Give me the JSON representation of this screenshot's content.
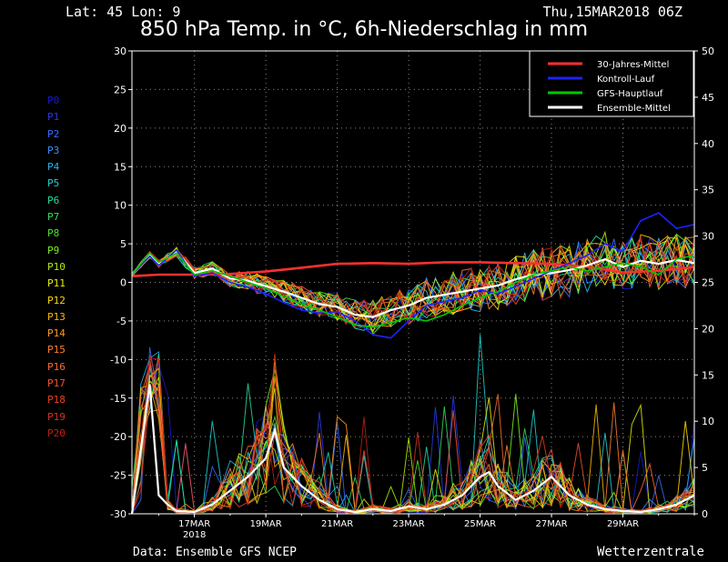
{
  "header": {
    "location": "Lat: 45 Lon: 9",
    "datestamp": "Thu,15MAR2018 06Z"
  },
  "footer": {
    "source": "Data: Ensemble GFS NCEP",
    "brand": "Wetterzentrale"
  },
  "members": [
    {
      "label": "P0",
      "color": "#1818d0"
    },
    {
      "label": "P1",
      "color": "#2a3ae8"
    },
    {
      "label": "P2",
      "color": "#3a6cff"
    },
    {
      "label": "P3",
      "color": "#3a90ff"
    },
    {
      "label": "P4",
      "color": "#28b4f0"
    },
    {
      "label": "P5",
      "color": "#20d2d2"
    },
    {
      "label": "P6",
      "color": "#20e0a0"
    },
    {
      "label": "P7",
      "color": "#30e060"
    },
    {
      "label": "P8",
      "color": "#50e030"
    },
    {
      "label": "P9",
      "color": "#80f020"
    },
    {
      "label": "P10",
      "color": "#b0f000"
    },
    {
      "label": "P11",
      "color": "#e8f000"
    },
    {
      "label": "P12",
      "color": "#ffd800"
    },
    {
      "label": "P13",
      "color": "#ffb800"
    },
    {
      "label": "P14",
      "color": "#ff9c20"
    },
    {
      "label": "P15",
      "color": "#ff8030"
    },
    {
      "label": "P16",
      "color": "#ff6a30"
    },
    {
      "label": "P17",
      "color": "#f85030"
    },
    {
      "label": "P18",
      "color": "#e84020"
    },
    {
      "label": "P19",
      "color": "#d83020"
    },
    {
      "label": "P20",
      "color": "#c02010"
    }
  ],
  "chart_data": {
    "type": "line",
    "title": "850 hPa Temp. in °C, 6h-Niederschlag in mm",
    "x_ticks": [
      "17MAR",
      "19MAR",
      "21MAR",
      "23MAR",
      "25MAR",
      "27MAR",
      "29MAR"
    ],
    "x_year_label": "2018",
    "x_range_days": [
      15.25,
      31.0
    ],
    "y_left": {
      "range": [
        -30,
        30
      ],
      "ticks": [
        -30,
        -25,
        -20,
        -15,
        -10,
        -5,
        0,
        5,
        10,
        15,
        20,
        25,
        30
      ]
    },
    "y_right": {
      "range": [
        0,
        50
      ],
      "ticks": [
        0,
        5,
        10,
        15,
        20,
        25,
        30,
        35,
        40,
        45,
        50
      ]
    },
    "grid": true,
    "legend_position": "top-right",
    "legend": [
      {
        "name": "30-Jahres-Mittel",
        "color": "#ff3030"
      },
      {
        "name": "Kontroll-Lauf",
        "color": "#2020ff"
      },
      {
        "name": "GFS-Hauptlauf",
        "color": "#00c800"
      },
      {
        "name": "Ensemble-Mittel",
        "color": "#ffffff"
      }
    ],
    "series": [
      {
        "name": "30-Jahres-Mittel",
        "axis": "left",
        "color": "#ff3030",
        "x": [
          15.25,
          16,
          17,
          18,
          19,
          20,
          21,
          22,
          23,
          24,
          25,
          26,
          27,
          28,
          29,
          30,
          31
        ],
        "values": [
          0.8,
          1.0,
          1.0,
          1.1,
          1.4,
          1.9,
          2.4,
          2.5,
          2.4,
          2.6,
          2.6,
          2.5,
          2.4,
          2.0,
          1.3,
          1.5,
          2.0
        ]
      },
      {
        "name": "Ensemble-Mittel",
        "axis": "left",
        "color": "#ffffff",
        "x": [
          15.25,
          15.75,
          16,
          16.5,
          17,
          17.5,
          18,
          18.5,
          19,
          19.5,
          20,
          20.5,
          21,
          21.5,
          22,
          22.5,
          23,
          23.5,
          24,
          24.5,
          25,
          25.5,
          26,
          26.5,
          27,
          27.5,
          28,
          28.5,
          29,
          29.5,
          30,
          30.5,
          31
        ],
        "values": [
          1.0,
          3.6,
          2.4,
          4.0,
          1.2,
          1.8,
          0.5,
          0.2,
          -0.5,
          -1.2,
          -2.0,
          -2.8,
          -3.2,
          -4.2,
          -4.5,
          -3.6,
          -3.0,
          -2.0,
          -1.6,
          -1.2,
          -0.8,
          -0.4,
          0.4,
          1.0,
          1.2,
          1.6,
          2.2,
          3.0,
          2.0,
          2.8,
          2.4,
          2.9,
          2.5
        ]
      },
      {
        "name": "Kontroll-Lauf",
        "axis": "left",
        "color": "#2020ff",
        "x": [
          15.25,
          15.75,
          16,
          16.5,
          17,
          17.5,
          18,
          18.5,
          19,
          19.5,
          20,
          20.5,
          21,
          21.5,
          22,
          22.5,
          23,
          23.5,
          24,
          24.5,
          25,
          25.5,
          26,
          26.5,
          27,
          27.5,
          28,
          28.5,
          29,
          29.5,
          30,
          30.5,
          31
        ],
        "values": [
          1.0,
          3.4,
          2.2,
          4.2,
          0.8,
          1.2,
          0.0,
          -0.6,
          -1.5,
          -2.6,
          -3.6,
          -4.0,
          -3.8,
          -5.0,
          -6.8,
          -7.2,
          -5.0,
          -3.0,
          -2.5,
          -2.0,
          -1.0,
          -1.5,
          -0.5,
          0.5,
          1.5,
          2.5,
          3.5,
          5.0,
          4.0,
          8.0,
          9.0,
          7.0,
          7.5
        ]
      },
      {
        "name": "GFS-Hauptlauf",
        "axis": "left",
        "color": "#00c800",
        "x": [
          15.25,
          15.75,
          16,
          16.5,
          17,
          17.5,
          18,
          18.5,
          19,
          19.5,
          20,
          20.5,
          21,
          21.5,
          22,
          22.5,
          23,
          23.5,
          24,
          24.5,
          25,
          25.5,
          26,
          26.5,
          27,
          27.5,
          28,
          28.5,
          29,
          29.5,
          30,
          30.5,
          31
        ],
        "values": [
          1.0,
          3.8,
          2.6,
          3.8,
          1.0,
          1.5,
          0.8,
          0.0,
          -0.8,
          -1.8,
          -2.8,
          -3.6,
          -4.5,
          -5.5,
          -5.8,
          -5.2,
          -4.6,
          -5.0,
          -4.2,
          -3.0,
          -2.0,
          -1.2,
          0.0,
          1.0,
          1.5,
          2.0,
          1.5,
          2.0,
          2.5,
          2.0,
          1.0,
          3.0,
          3.5
        ]
      },
      {
        "name": "Ensemble-Mittel",
        "axis": "right",
        "color": "#ffffff",
        "x": [
          15.25,
          15.75,
          16,
          16.25,
          16.5,
          17,
          17.5,
          18,
          18.5,
          19,
          19.25,
          19.5,
          20,
          20.5,
          21,
          21.5,
          22,
          22.5,
          23,
          23.5,
          24,
          24.5,
          25,
          25.25,
          25.5,
          26,
          26.5,
          27,
          27.5,
          28,
          28.5,
          29,
          29.5,
          30,
          30.5,
          31
        ],
        "values": [
          0,
          14,
          2,
          1,
          0.3,
          0.2,
          1,
          2.5,
          4,
          6,
          9,
          5,
          3,
          1.5,
          0.5,
          0.2,
          0.5,
          0.3,
          0.8,
          0.5,
          1,
          2,
          4,
          4.5,
          3,
          1.5,
          2.5,
          4,
          2,
          1,
          0.5,
          0.3,
          0.2,
          0.5,
          1,
          2
        ]
      }
    ]
  }
}
